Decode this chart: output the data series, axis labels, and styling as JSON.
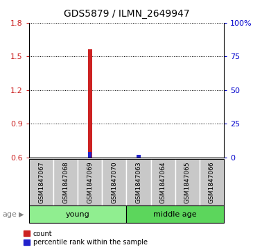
{
  "title": "GDS5879 / ILMN_2649947",
  "samples": [
    "GSM1847067",
    "GSM1847068",
    "GSM1847069",
    "GSM1847070",
    "GSM1847063",
    "GSM1847064",
    "GSM1847065",
    "GSM1847066"
  ],
  "groups": [
    {
      "label": "young",
      "color": "#90EE90",
      "start": 0,
      "end": 3
    },
    {
      "label": "middle age",
      "color": "#5CD65C",
      "start": 4,
      "end": 7
    }
  ],
  "red_values": [
    null,
    null,
    1.565,
    null,
    null,
    null,
    null,
    null
  ],
  "blue_values_pct": [
    null,
    null,
    4.0,
    null,
    2.0,
    null,
    null,
    null
  ],
  "red_value_5": 0.625,
  "ylim_left": [
    0.6,
    1.8
  ],
  "ylim_right": [
    0,
    100
  ],
  "left_ticks": [
    0.6,
    0.9,
    1.2,
    1.5,
    1.8
  ],
  "right_ticks": [
    0,
    25,
    50,
    75,
    100
  ],
  "left_tick_labels": [
    "0.6",
    "0.9",
    "1.2",
    "1.5",
    "1.8"
  ],
  "right_tick_labels": [
    "0",
    "25",
    "50",
    "75",
    "100%"
  ],
  "bar_bottom": 0.6,
  "sample_box_color": "#C8C8C8",
  "age_label": "age",
  "legend_red": "count",
  "legend_blue": "percentile rank within the sample",
  "red_color": "#CC2222",
  "blue_color": "#2222CC",
  "title_fontsize": 10,
  "tick_fontsize": 8,
  "sample_fontsize": 6.5,
  "group_fontsize": 8
}
